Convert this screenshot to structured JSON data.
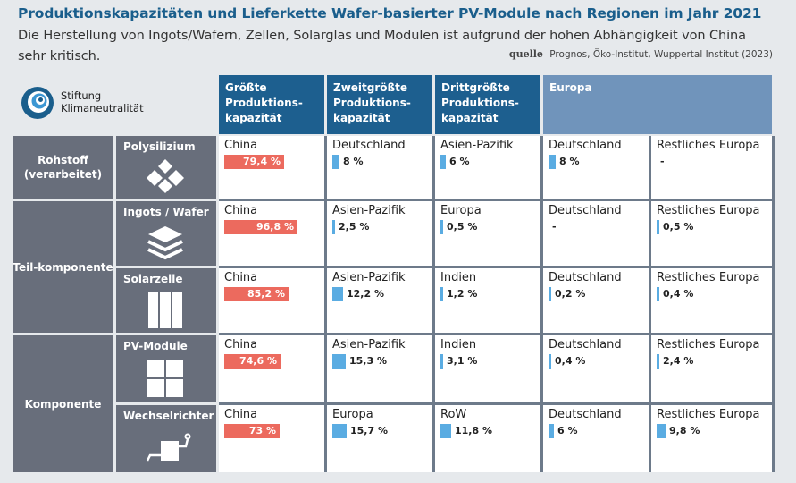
{
  "title": "Produktionskapazitäten und Lieferkette Wafer-basierter PV-Module nach Regionen im Jahr 2021",
  "subtitle": "Die Herstellung von Ingots/Wafern, Zellen, Solarglas und Modulen ist aufgrund der hohen Abhängigkeit von China sehr kritisch.",
  "source_label": "quelle",
  "source_text": "Prognos, Öko-Institut, Wuppertal Institut (2023)",
  "logo": {
    "line1": "Stiftung",
    "line2": "Klimaneutralität",
    "icon": "spiral-logo-icon"
  },
  "columns": {
    "c1": "Größte Produktions-kapazität",
    "c2": "Zweitgrößte Produktions-kapazität",
    "c3": "Drittgrößte Produktions-kapazität",
    "europa": "Europa"
  },
  "categories": {
    "rohstoff": "Rohstoff (verarbeitet)",
    "teil": "Teil-komponente",
    "komponente": "Komponente"
  },
  "chart_data": {
    "type": "table",
    "unit": "%",
    "rows": [
      {
        "product": "Polysilizium",
        "icon": "polysilicon-icon",
        "cells": [
          {
            "country": "China",
            "label": "79,4 %",
            "value": 79.4
          },
          {
            "country": "Deutschland",
            "label": "8 %",
            "value": 8
          },
          {
            "country": "Asien-Pazifik",
            "label": "6 %",
            "value": 6
          },
          {
            "country": "Deutschland",
            "label": "8 %",
            "value": 8
          },
          {
            "country": "Restliches Europa",
            "label": "-",
            "value": null
          }
        ]
      },
      {
        "product": "Ingots / Wafer",
        "icon": "wafer-stack-icon",
        "cells": [
          {
            "country": "China",
            "label": "96,8 %",
            "value": 96.8
          },
          {
            "country": "Asien-Pazifik",
            "label": "2,5 %",
            "value": 2.5
          },
          {
            "country": "Europa",
            "label": "0,5 %",
            "value": 0.5
          },
          {
            "country": "Deutschland",
            "label": "-",
            "value": null
          },
          {
            "country": "Restliches Europa",
            "label": "0,5 %",
            "value": 0.5
          }
        ]
      },
      {
        "product": "Solarzelle",
        "icon": "solar-cell-icon",
        "cells": [
          {
            "country": "China",
            "label": "85,2 %",
            "value": 85.2
          },
          {
            "country": "Asien-Pazifik",
            "label": "12,2 %",
            "value": 12.2
          },
          {
            "country": "Indien",
            "label": "1,2 %",
            "value": 1.2
          },
          {
            "country": "Deutschland",
            "label": "0,2 %",
            "value": 0.2
          },
          {
            "country": "Restliches Europa",
            "label": "0,4 %",
            "value": 0.4
          }
        ]
      },
      {
        "product": "PV-Module",
        "icon": "pv-module-icon",
        "cells": [
          {
            "country": "China",
            "label": "74,6 %",
            "value": 74.6
          },
          {
            "country": "Asien-Pazifik",
            "label": "15,3 %",
            "value": 15.3
          },
          {
            "country": "Indien",
            "label": "3,1 %",
            "value": 3.1
          },
          {
            "country": "Deutschland",
            "label": "0,4 %",
            "value": 0.4
          },
          {
            "country": "Restliches Europa",
            "label": "2,4 %",
            "value": 2.4
          }
        ]
      },
      {
        "product": "Wechselrichter",
        "icon": "inverter-icon",
        "cells": [
          {
            "country": "China",
            "label": "73 %",
            "value": 73
          },
          {
            "country": "Europa",
            "label": "15,7 %",
            "value": 15.7
          },
          {
            "country": "RoW",
            "label": "11,8 %",
            "value": 11.8
          },
          {
            "country": "Deutschland",
            "label": "6 %",
            "value": 6
          },
          {
            "country": "Restliches Europa",
            "label": "9,8 %",
            "value": 9.8
          }
        ]
      }
    ]
  },
  "colors": {
    "china": "#ec6a5e",
    "other": "#5aace2",
    "header_dark": "#1d5f8f",
    "header_light": "#7094bb",
    "category": "#686e7b",
    "title": "#1a5e8c"
  }
}
